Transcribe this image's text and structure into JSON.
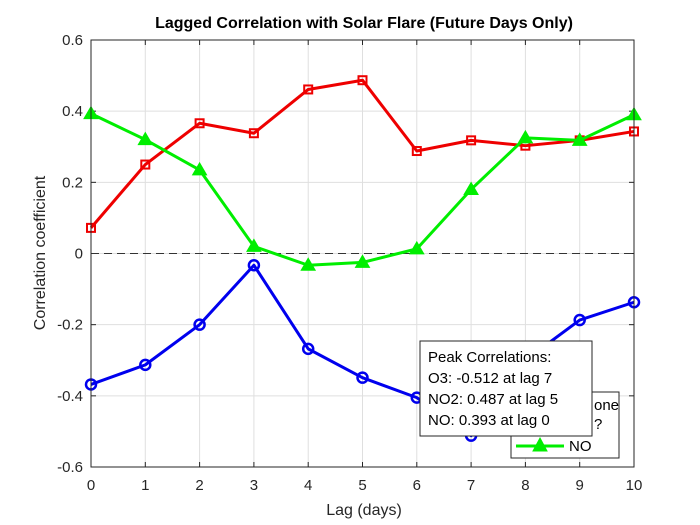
{
  "chart_data": {
    "type": "line",
    "title": "Lagged Correlation with Solar Flare (Future Days Only)",
    "xlabel": "Lag (days)",
    "ylabel": "Correlation coefficient",
    "x": [
      0,
      1,
      2,
      3,
      4,
      5,
      6,
      7,
      8,
      9,
      10
    ],
    "xlim": [
      0,
      10
    ],
    "ylim": [
      -0.6,
      0.6
    ],
    "xticks": [
      "0",
      "1",
      "2",
      "3",
      "4",
      "5",
      "6",
      "7",
      "8",
      "9",
      "10"
    ],
    "yticks": [
      "-0.6",
      "-0.4",
      "-0.2",
      "0",
      "0.2",
      "0.4",
      "0.6"
    ],
    "grid": true,
    "zero_line": true,
    "series": [
      {
        "marker": "circle",
        "color": "#0000ee",
        "values": [
          -0.368,
          -0.313,
          -0.2,
          -0.033,
          -0.268,
          -0.349,
          -0.405,
          -0.512,
          -0.3,
          -0.187,
          -0.137
        ]
      },
      {
        "marker": "square",
        "color": "#ee0000",
        "values": [
          0.072,
          0.25,
          0.366,
          0.338,
          0.461,
          0.487,
          0.288,
          0.318,
          0.303,
          0.318,
          0.343
        ]
      },
      {
        "name": "NO",
        "marker": "triangle",
        "color": "#00ee00",
        "values": [
          0.393,
          0.32,
          0.235,
          0.02,
          -0.033,
          -0.025,
          0.013,
          0.18,
          0.325,
          0.318,
          0.39
        ]
      }
    ],
    "legend": {
      "placement": "bottom-right",
      "partial_lines": [
        "one",
        "?"
      ],
      "visible_entry": "NO"
    },
    "annotation": {
      "title": "Peak Correlations:",
      "lines": [
        "O3: -0.512 at lag 7",
        "NO2: 0.487 at lag 5",
        "NO: 0.393 at lag 0"
      ]
    }
  }
}
